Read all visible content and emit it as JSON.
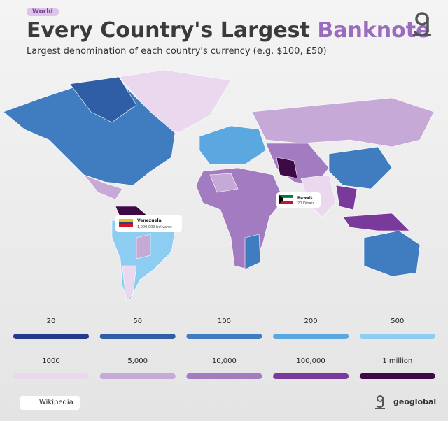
{
  "tag": "World",
  "title": {
    "main": "Every Country's Largest",
    "accent": "Banknote"
  },
  "subtitle": "Largest denomination of each country's currency (e.g. $100, £50)",
  "callouts": [
    {
      "country": "Venezuela",
      "note": "1,000,000 bolivares"
    },
    {
      "country": "Kuwait",
      "note": "20 Dinars"
    }
  ],
  "legend": {
    "items": [
      {
        "label": "20",
        "color": "#243a8a"
      },
      {
        "label": "50",
        "color": "#2f5ea6"
      },
      {
        "label": "100",
        "color": "#3f7cc0"
      },
      {
        "label": "200",
        "color": "#5ba7e0"
      },
      {
        "label": "500",
        "color": "#8ccdf1"
      },
      {
        "label": "1000",
        "color": "#ead8ef"
      },
      {
        "label": "5,000",
        "color": "#c7a9d8"
      },
      {
        "label": "10,000",
        "color": "#a27bc1"
      },
      {
        "label": "100,000",
        "color": "#7a3a9b"
      },
      {
        "label": "1 million",
        "color": "#3d0a45"
      }
    ]
  },
  "source": "Wikipedia",
  "brand": "geoglobal"
}
